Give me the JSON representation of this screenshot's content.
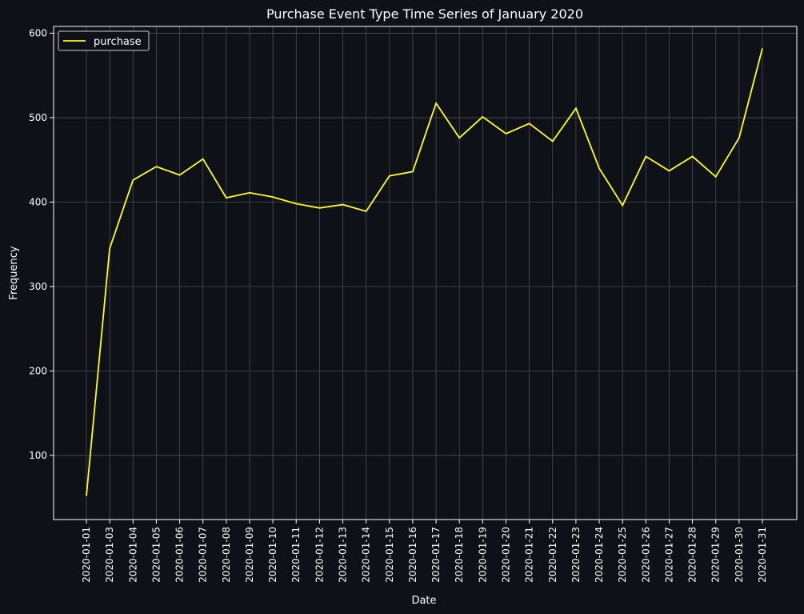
{
  "chart_data": {
    "type": "line",
    "title": "Purchase Event Type Time Series of January 2020",
    "xlabel": "Date",
    "ylabel": "Frequency",
    "x": [
      "2020-01-01",
      "2020-01-03",
      "2020-01-04",
      "2020-01-05",
      "2020-01-06",
      "2020-01-07",
      "2020-01-08",
      "2020-01-09",
      "2020-01-10",
      "2020-01-11",
      "2020-01-12",
      "2020-01-13",
      "2020-01-14",
      "2020-01-15",
      "2020-01-16",
      "2020-01-17",
      "2020-01-18",
      "2020-01-19",
      "2020-01-20",
      "2020-01-21",
      "2020-01-22",
      "2020-01-23",
      "2020-01-24",
      "2020-01-25",
      "2020-01-26",
      "2020-01-27",
      "2020-01-28",
      "2020-01-29",
      "2020-01-30",
      "2020-01-31"
    ],
    "series": [
      {
        "name": "purchase",
        "color": "#ffff14",
        "values": [
          52,
          345,
          426,
          442,
          432,
          451,
          405,
          411,
          406,
          398,
          393,
          397,
          389,
          431,
          436,
          517,
          476,
          501,
          481,
          493,
          472,
          511,
          440,
          396,
          454,
          437,
          454,
          430,
          476,
          582
        ]
      }
    ],
    "ylim": [
      24,
      608
    ],
    "yticks": [
      100,
      200,
      300,
      400,
      500,
      600
    ],
    "grid": true,
    "legend": "top-left",
    "colors": {
      "background": "#0e1117",
      "grid": "#4a4d52",
      "text": "#ffffff",
      "line": "#ffff14"
    }
  }
}
